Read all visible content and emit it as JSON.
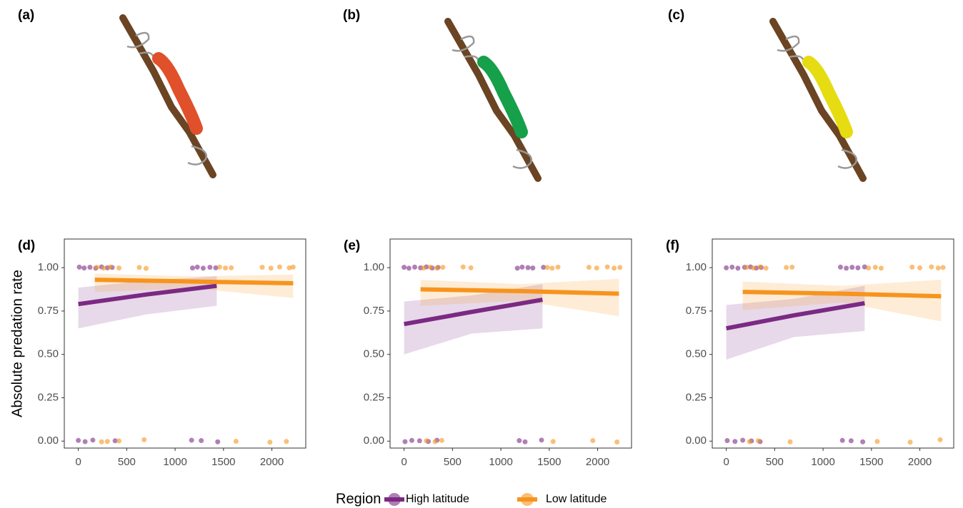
{
  "panels": [
    {
      "label": "(a)"
    },
    {
      "label": "(b)"
    },
    {
      "label": "(c)"
    }
  ],
  "legend": {
    "title": "Region",
    "entries": [
      "High latitude",
      "Low latitude"
    ]
  },
  "chart_data": [
    {
      "type": "scatter",
      "title": "(d)",
      "ylabel": "Absolute predation rate",
      "xlim": [
        -145,
        2350
      ],
      "ylim": [
        -0.04,
        1.165
      ],
      "xticks": [
        0,
        500,
        1000,
        1500,
        2000
      ],
      "yticks": [
        {
          "value": 0,
          "label": "0.00"
        },
        {
          "value": 0.25,
          "label": "0.25"
        },
        {
          "value": 0.5,
          "label": "0.50"
        },
        {
          "value": 0.75,
          "label": "0.75"
        },
        {
          "value": 1,
          "label": "1.00"
        }
      ],
      "series": [
        {
          "color": "#7b2a83",
          "x": [
            10,
            60,
            120,
            180,
            240,
            300,
            350,
            1180,
            1230,
            1290,
            1360,
            1420,
            0,
            70,
            150,
            380,
            1170,
            1270,
            1440
          ],
          "values": [
            1.003,
            0.998,
            1.002,
            0.997,
            1.004,
            0.999,
            1.001,
            0.998,
            1.003,
            0.997,
            1.002,
            0.999,
            0.004,
            -0.003,
            0.006,
            0.002,
            0.005,
            0.003,
            -0.004
          ],
          "fit": {
            "x": [
              0,
              700,
              1430
            ],
            "values": [
              0.79,
              0.845,
              0.895
            ],
            "lower": [
              0.65,
              0.73,
              0.78
            ],
            "upper": [
              0.885,
              0.925,
              0.95
            ]
          }
        },
        {
          "color": "#f7941d",
          "x": [
            190,
            260,
            330,
            420,
            630,
            700,
            1460,
            1520,
            1580,
            1900,
            1990,
            2080,
            2180,
            2220,
            240,
            300,
            420,
            680,
            1630,
            1980,
            2150
          ],
          "values": [
            1.002,
            0.997,
            1.004,
            0.998,
            1.001,
            0.996,
            1.003,
            0.998,
            0.999,
            1.002,
            0.997,
            1.004,
            0.999,
            1.003,
            -0.004,
            -0.002,
            0.001,
            0.008,
            -0.001,
            -0.006,
            -0.002
          ],
          "fit": {
            "x": [
              170,
              1200,
              2220
            ],
            "values": [
              0.93,
              0.92,
              0.91
            ],
            "lower": [
              0.86,
              0.88,
              0.825
            ],
            "upper": [
              0.965,
              0.95,
              0.96
            ]
          }
        }
      ]
    },
    {
      "type": "scatter",
      "title": "(e)",
      "xlim": [
        -145,
        2350
      ],
      "ylim": [
        -0.04,
        1.165
      ],
      "xticks": [
        0,
        500,
        1000,
        1500,
        2000
      ],
      "yticks": [
        {
          "value": 0,
          "label": "0.00"
        },
        {
          "value": 0.25,
          "label": "0.25"
        },
        {
          "value": 0.5,
          "label": "0.50"
        },
        {
          "value": 0.75,
          "label": "0.75"
        },
        {
          "value": 1,
          "label": "1.00"
        }
      ],
      "series": [
        {
          "color": "#7b2a83",
          "x": [
            0,
            50,
            110,
            170,
            230,
            290,
            350,
            1170,
            1220,
            1280,
            1330,
            1440,
            10,
            80,
            160,
            250,
            340,
            1190,
            1250,
            1420
          ],
          "values": [
            1.002,
            0.997,
            1.003,
            0.999,
            1.004,
            0.998,
            1.001,
            0.997,
            1.003,
            1.0,
            0.998,
            1.002,
            -0.003,
            0.004,
            0.002,
            -0.002,
            0.005,
            0.003,
            -0.004,
            0.006
          ],
          "fit": {
            "x": [
              0,
              700,
              1430
            ],
            "values": [
              0.675,
              0.745,
              0.815
            ],
            "lower": [
              0.5,
              0.62,
              0.65
            ],
            "upper": [
              0.805,
              0.84,
              0.905
            ]
          }
        },
        {
          "color": "#f7941d",
          "x": [
            200,
            270,
            340,
            400,
            610,
            690,
            1480,
            1530,
            1590,
            1910,
            1990,
            2100,
            2170,
            2230,
            230,
            320,
            390,
            1540,
            1950,
            2200
          ],
          "values": [
            0.998,
            1.003,
            0.997,
            1.002,
            1.004,
            0.999,
            1.001,
            0.997,
            1.003,
            1.002,
            0.998,
            1.004,
            0.997,
            1.001,
            0.002,
            -0.003,
            0.004,
            -0.002,
            0.003,
            -0.005
          ],
          "fit": {
            "x": [
              170,
              1200,
              2220
            ],
            "values": [
              0.875,
              0.865,
              0.85
            ],
            "lower": [
              0.78,
              0.81,
              0.72
            ],
            "upper": [
              0.93,
              0.905,
              0.935
            ]
          }
        }
      ]
    },
    {
      "type": "scatter",
      "title": "(f)",
      "xlim": [
        -145,
        2350
      ],
      "ylim": [
        -0.04,
        1.165
      ],
      "xticks": [
        0,
        500,
        1000,
        1500,
        2000
      ],
      "yticks": [
        {
          "value": 0,
          "label": "0.00"
        },
        {
          "value": 0.25,
          "label": "0.25"
        },
        {
          "value": 0.5,
          "label": "0.50"
        },
        {
          "value": 0.75,
          "label": "0.75"
        },
        {
          "value": 1,
          "label": "1.00"
        }
      ],
      "series": [
        {
          "color": "#7b2a83",
          "x": [
            0,
            60,
            120,
            190,
            250,
            310,
            360,
            1180,
            1240,
            1300,
            1360,
            1430,
            10,
            90,
            170,
            260,
            350,
            1200,
            1290,
            1410
          ],
          "values": [
            0.999,
            1.003,
            0.997,
            1.002,
            1.004,
            0.998,
            1.001,
            1.003,
            0.997,
            1.002,
            0.999,
            1.004,
            0.003,
            -0.002,
            0.005,
            0.001,
            -0.003,
            0.004,
            0.002,
            -0.004
          ],
          "fit": {
            "x": [
              0,
              700,
              1430
            ],
            "values": [
              0.65,
              0.725,
              0.795
            ],
            "lower": [
              0.47,
              0.6,
              0.635
            ],
            "upper": [
              0.785,
              0.82,
              0.895
            ]
          }
        },
        {
          "color": "#f7941d",
          "x": [
            210,
            280,
            350,
            410,
            620,
            680,
            1470,
            1540,
            1600,
            1920,
            2000,
            2120,
            2190,
            2240,
            240,
            330,
            660,
            1560,
            1900,
            2210
          ],
          "values": [
            1.002,
            0.998,
            1.004,
            0.997,
            1.001,
            1.003,
            0.998,
            1.002,
            0.997,
            1.003,
            0.999,
            1.004,
            0.998,
            1.001,
            -0.003,
            0.002,
            -0.004,
            -0.002,
            -0.006,
            0.008
          ],
          "fit": {
            "x": [
              170,
              1200,
              2220
            ],
            "values": [
              0.86,
              0.85,
              0.835
            ],
            "lower": [
              0.755,
              0.8,
              0.69
            ],
            "upper": [
              0.92,
              0.895,
              0.93
            ]
          }
        }
      ]
    }
  ]
}
